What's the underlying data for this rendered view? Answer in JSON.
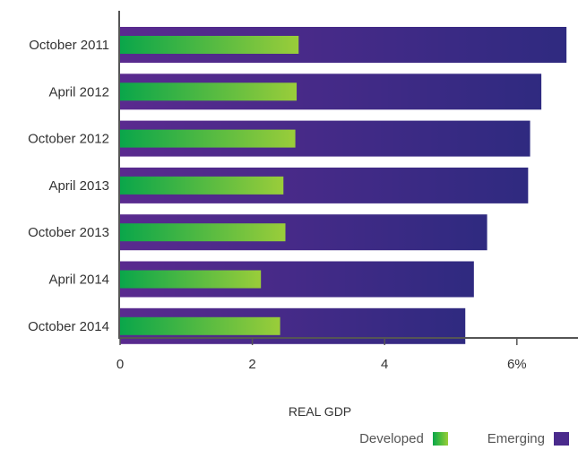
{
  "chart_data": {
    "type": "bar",
    "orientation": "horizontal",
    "categories": [
      "October 2011",
      "April 2012",
      "October 2012",
      "April 2013",
      "October 2013",
      "April 2014",
      "October 2014"
    ],
    "series": [
      {
        "name": "Developed",
        "values": [
          2.7,
          2.67,
          2.65,
          2.47,
          2.5,
          2.13,
          2.42
        ]
      },
      {
        "name": "Emerging",
        "values": [
          6.75,
          6.37,
          6.2,
          6.17,
          5.55,
          5.35,
          5.22
        ]
      }
    ],
    "xlabel": "REAL GDP",
    "xlim": [
      0,
      6.8
    ],
    "xticks": [
      "0",
      "2",
      "4",
      "6%"
    ],
    "xtick_values": [
      0,
      2,
      4,
      6
    ],
    "legend_position": "bottom-right",
    "grid": false,
    "colors": {
      "developed_start": "#0aa64a",
      "developed_end": "#9acd3a",
      "emerging_start": "#5a2a8f",
      "emerging_end": "#2f2a80",
      "axis": "#555555"
    }
  }
}
